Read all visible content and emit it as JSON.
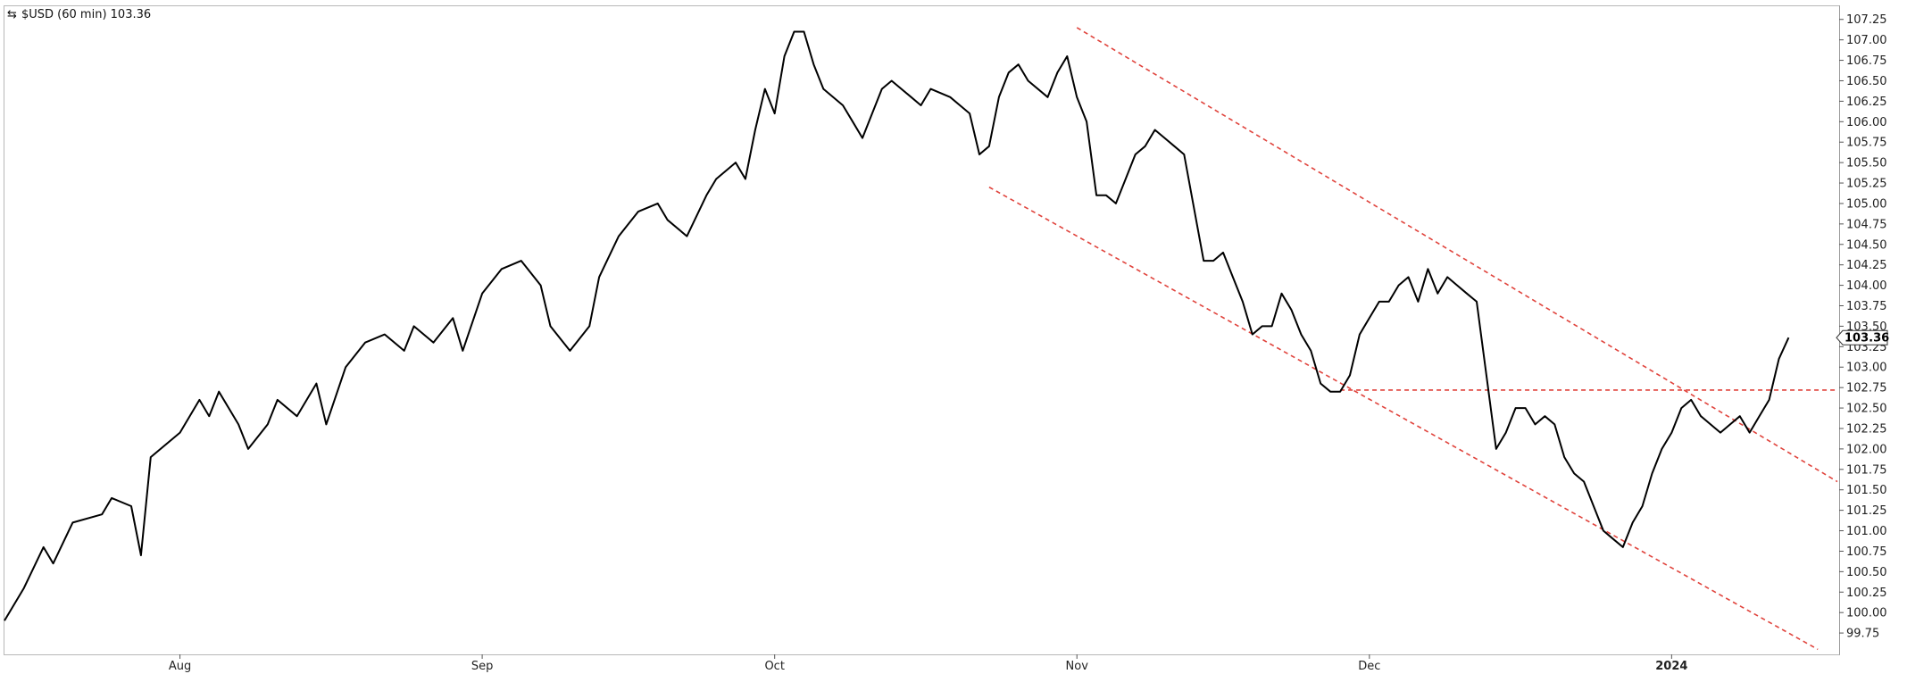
{
  "chart_data": {
    "type": "line",
    "symbol": "$USD",
    "interval": "(60 min)",
    "last_value": 103.36,
    "last_label": "103.36",
    "y_tick_labels": [
      "99.75",
      "100.00",
      "100.25",
      "100.50",
      "100.75",
      "101.00",
      "101.25",
      "101.50",
      "101.75",
      "102.00",
      "102.25",
      "102.50",
      "102.75",
      "103.00",
      "103.25",
      "103.50",
      "103.75",
      "104.00",
      "104.25",
      "104.50",
      "104.75",
      "105.00",
      "105.25",
      "105.50",
      "105.75",
      "106.00",
      "106.25",
      "106.50",
      "106.75",
      "107.00",
      "107.25"
    ],
    "x_tick_labels": [
      {
        "label": "Aug",
        "date": "2023-08-01"
      },
      {
        "label": "Sep",
        "date": "2023-09-01"
      },
      {
        "label": "Oct",
        "date": "2023-10-01"
      },
      {
        "label": "Nov",
        "date": "2023-11-01"
      },
      {
        "label": "Dec",
        "date": "2023-12-01"
      },
      {
        "label": "2024",
        "date": "2024-01-01"
      }
    ],
    "xlim": [
      "2023-07-14",
      "2024-01-18"
    ],
    "ylim": [
      99.5,
      107.4
    ],
    "grid": false,
    "series": [
      {
        "values": [
          [
            "2023-07-14",
            99.9
          ],
          [
            "2023-07-16",
            100.3
          ],
          [
            "2023-07-18",
            100.8
          ],
          [
            "2023-07-19",
            100.6
          ],
          [
            "2023-07-21",
            101.1
          ],
          [
            "2023-07-24",
            101.2
          ],
          [
            "2023-07-25",
            101.4
          ],
          [
            "2023-07-27",
            101.3
          ],
          [
            "2023-07-28",
            100.7
          ],
          [
            "2023-07-29",
            101.9
          ],
          [
            "2023-08-01",
            102.2
          ],
          [
            "2023-08-03",
            102.6
          ],
          [
            "2023-08-04",
            102.4
          ],
          [
            "2023-08-05",
            102.7
          ],
          [
            "2023-08-07",
            102.3
          ],
          [
            "2023-08-08",
            102.0
          ],
          [
            "2023-08-10",
            102.3
          ],
          [
            "2023-08-11",
            102.6
          ],
          [
            "2023-08-13",
            102.4
          ],
          [
            "2023-08-15",
            102.8
          ],
          [
            "2023-08-16",
            102.3
          ],
          [
            "2023-08-18",
            103.0
          ],
          [
            "2023-08-20",
            103.3
          ],
          [
            "2023-08-22",
            103.4
          ],
          [
            "2023-08-24",
            103.2
          ],
          [
            "2023-08-25",
            103.5
          ],
          [
            "2023-08-27",
            103.3
          ],
          [
            "2023-08-29",
            103.6
          ],
          [
            "2023-08-30",
            103.2
          ],
          [
            "2023-09-01",
            103.9
          ],
          [
            "2023-09-03",
            104.2
          ],
          [
            "2023-09-05",
            104.3
          ],
          [
            "2023-09-07",
            104.0
          ],
          [
            "2023-09-08",
            103.5
          ],
          [
            "2023-09-10",
            103.2
          ],
          [
            "2023-09-12",
            103.5
          ],
          [
            "2023-09-13",
            104.1
          ],
          [
            "2023-09-15",
            104.6
          ],
          [
            "2023-09-17",
            104.9
          ],
          [
            "2023-09-19",
            105.0
          ],
          [
            "2023-09-20",
            104.8
          ],
          [
            "2023-09-22",
            104.6
          ],
          [
            "2023-09-24",
            105.1
          ],
          [
            "2023-09-25",
            105.3
          ],
          [
            "2023-09-27",
            105.5
          ],
          [
            "2023-09-28",
            105.3
          ],
          [
            "2023-09-29",
            105.9
          ],
          [
            "2023-09-30",
            106.4
          ],
          [
            "2023-10-01",
            106.1
          ],
          [
            "2023-10-02",
            106.8
          ],
          [
            "2023-10-03",
            107.1
          ],
          [
            "2023-10-04",
            107.1
          ],
          [
            "2023-10-05",
            106.7
          ],
          [
            "2023-10-06",
            106.4
          ],
          [
            "2023-10-08",
            106.2
          ],
          [
            "2023-10-09",
            106.0
          ],
          [
            "2023-10-10",
            105.8
          ],
          [
            "2023-10-12",
            106.4
          ],
          [
            "2023-10-13",
            106.5
          ],
          [
            "2023-10-15",
            106.3
          ],
          [
            "2023-10-16",
            106.2
          ],
          [
            "2023-10-17",
            106.4
          ],
          [
            "2023-10-19",
            106.3
          ],
          [
            "2023-10-20",
            106.2
          ],
          [
            "2023-10-21",
            106.1
          ],
          [
            "2023-10-22",
            105.6
          ],
          [
            "2023-10-23",
            105.7
          ],
          [
            "2023-10-24",
            106.3
          ],
          [
            "2023-10-25",
            106.6
          ],
          [
            "2023-10-26",
            106.7
          ],
          [
            "2023-10-27",
            106.5
          ],
          [
            "2023-10-29",
            106.3
          ],
          [
            "2023-10-30",
            106.6
          ],
          [
            "2023-10-31",
            106.8
          ],
          [
            "2023-11-01",
            106.3
          ],
          [
            "2023-11-02",
            106.0
          ],
          [
            "2023-11-03",
            105.1
          ],
          [
            "2023-11-04",
            105.1
          ],
          [
            "2023-11-05",
            105.0
          ],
          [
            "2023-11-06",
            105.3
          ],
          [
            "2023-11-07",
            105.6
          ],
          [
            "2023-11-08",
            105.7
          ],
          [
            "2023-11-09",
            105.9
          ],
          [
            "2023-11-10",
            105.8
          ],
          [
            "2023-11-11",
            105.7
          ],
          [
            "2023-11-12",
            105.6
          ],
          [
            "2023-11-14",
            104.3
          ],
          [
            "2023-11-15",
            104.3
          ],
          [
            "2023-11-16",
            104.4
          ],
          [
            "2023-11-17",
            104.1
          ],
          [
            "2023-11-18",
            103.8
          ],
          [
            "2023-11-19",
            103.4
          ],
          [
            "2023-11-20",
            103.5
          ],
          [
            "2023-11-21",
            103.5
          ],
          [
            "2023-11-22",
            103.9
          ],
          [
            "2023-11-23",
            103.7
          ],
          [
            "2023-11-24",
            103.4
          ],
          [
            "2023-11-25",
            103.2
          ],
          [
            "2023-11-26",
            102.8
          ],
          [
            "2023-11-27",
            102.7
          ],
          [
            "2023-11-28",
            102.7
          ],
          [
            "2023-11-29",
            102.9
          ],
          [
            "2023-11-30",
            103.4
          ],
          [
            "2023-12-01",
            103.6
          ],
          [
            "2023-12-02",
            103.8
          ],
          [
            "2023-12-03",
            103.8
          ],
          [
            "2023-12-04",
            104.0
          ],
          [
            "2023-12-05",
            104.1
          ],
          [
            "2023-12-06",
            103.8
          ],
          [
            "2023-12-07",
            104.2
          ],
          [
            "2023-12-08",
            103.9
          ],
          [
            "2023-12-09",
            104.1
          ],
          [
            "2023-12-10",
            104.0
          ],
          [
            "2023-12-11",
            103.9
          ],
          [
            "2023-12-12",
            103.8
          ],
          [
            "2023-12-13",
            102.9
          ],
          [
            "2023-12-14",
            102.0
          ],
          [
            "2023-12-15",
            102.2
          ],
          [
            "2023-12-16",
            102.5
          ],
          [
            "2023-12-17",
            102.5
          ],
          [
            "2023-12-18",
            102.3
          ],
          [
            "2023-12-19",
            102.4
          ],
          [
            "2023-12-20",
            102.3
          ],
          [
            "2023-12-21",
            101.9
          ],
          [
            "2023-12-22",
            101.7
          ],
          [
            "2023-12-23",
            101.6
          ],
          [
            "2023-12-24",
            101.3
          ],
          [
            "2023-12-25",
            101.0
          ],
          [
            "2023-12-26",
            100.9
          ],
          [
            "2023-12-27",
            100.8
          ],
          [
            "2023-12-28",
            101.1
          ],
          [
            "2023-12-29",
            101.3
          ],
          [
            "2023-12-30",
            101.7
          ],
          [
            "2023-12-31",
            102.0
          ],
          [
            "2024-01-01",
            102.2
          ],
          [
            "2024-01-02",
            102.5
          ],
          [
            "2024-01-03",
            102.6
          ],
          [
            "2024-01-04",
            102.4
          ],
          [
            "2024-01-05",
            102.3
          ],
          [
            "2024-01-06",
            102.2
          ],
          [
            "2024-01-07",
            102.3
          ],
          [
            "2024-01-08",
            102.4
          ],
          [
            "2024-01-09",
            102.2
          ],
          [
            "2024-01-10",
            102.4
          ],
          [
            "2024-01-11",
            102.6
          ],
          [
            "2024-01-12",
            103.1
          ],
          [
            "2024-01-13",
            103.36
          ]
        ]
      }
    ],
    "trendlines": [
      {
        "from": [
          "2023-11-01",
          107.15
        ],
        "to": [
          "2024-01-18",
          101.6
        ],
        "color": "#e0433c",
        "style": "dashed"
      },
      {
        "from": [
          "2023-10-23",
          105.2
        ],
        "to": [
          "2024-01-16",
          99.55
        ],
        "color": "#e0433c",
        "style": "dashed"
      },
      {
        "from": [
          "2023-11-28",
          102.72
        ],
        "to": [
          "2024-01-18",
          102.72
        ],
        "color": "#e0433c",
        "style": "dashed"
      }
    ],
    "colors": {
      "price": "#000000",
      "trend": "#e0433c"
    }
  }
}
